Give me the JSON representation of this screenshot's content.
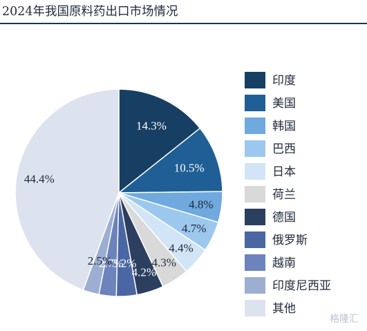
{
  "title": "2024年我国原料药出口市场情况",
  "watermark": "格隆汇",
  "chart_data": {
    "type": "pie",
    "start_angle_deg": 0,
    "direction": "clockwise",
    "legend_position": "right",
    "slices": [
      {
        "label": "印度",
        "value": 14.3,
        "display": "14.3%",
        "color": "#173f63",
        "label_color": "#ffffff"
      },
      {
        "label": "美国",
        "value": 10.5,
        "display": "10.5%",
        "color": "#1f5f96",
        "label_color": "#ffffff"
      },
      {
        "label": "韩国",
        "value": 4.8,
        "display": "4.8%",
        "color": "#6fa9de",
        "label_color": "#1f2a3a"
      },
      {
        "label": "巴西",
        "value": 4.7,
        "display": "4.7%",
        "color": "#9dc8ee",
        "label_color": "#1f2a3a"
      },
      {
        "label": "日本",
        "value": 4.4,
        "display": "4.4%",
        "color": "#d2e5f6",
        "label_color": "#1f2a3a"
      },
      {
        "label": "荷兰",
        "value": 4.3,
        "display": "4.3%",
        "color": "#d9d9d9",
        "label_color": "#1f2a3a"
      },
      {
        "label": "德国",
        "value": 4.2,
        "display": "4.2%",
        "color": "#2d3f5f",
        "label_color": "#ffffff"
      },
      {
        "label": "俄罗斯",
        "value": 3.2,
        "display": "3.2%",
        "color": "#4a67a3",
        "label_color": "#ffffff"
      },
      {
        "label": "越南",
        "value": 2.7,
        "display": "2.7%",
        "color": "#6c83bb",
        "label_color": "#ffffff"
      },
      {
        "label": "印度尼西亚",
        "value": 2.5,
        "display": "2.5%",
        "color": "#9daed3",
        "label_color": "#1f2a3a"
      },
      {
        "label": "其他",
        "value": 44.4,
        "display": "44.4%",
        "color": "#dde3ee",
        "label_color": "#1f2a3a"
      }
    ]
  }
}
